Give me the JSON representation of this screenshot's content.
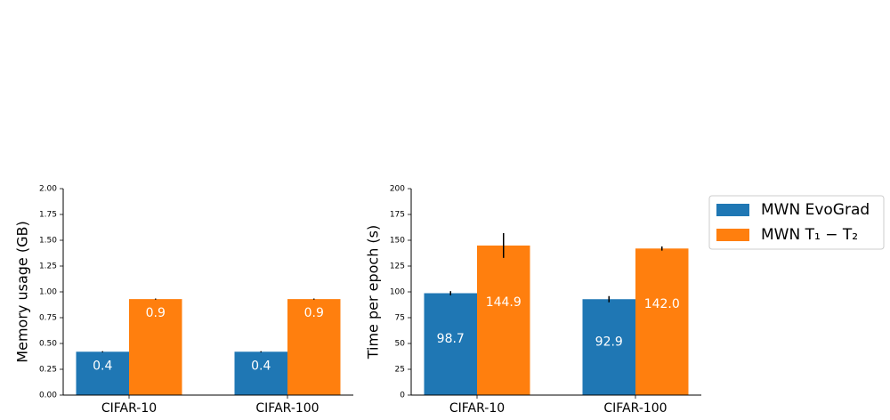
{
  "chart_data": [
    {
      "type": "bar",
      "ylabel": "Memory usage (GB)",
      "categories": [
        "CIFAR-10",
        "CIFAR-100"
      ],
      "series": [
        {
          "color": "#1f77b4",
          "values": [
            0.42,
            0.42
          ],
          "errors": [
            0.005,
            0.005
          ],
          "value_labels": [
            "0.4",
            "0.4"
          ]
        },
        {
          "color": "#ff7f0e",
          "values": [
            0.93,
            0.93
          ],
          "errors": [
            0.005,
            0.005
          ],
          "value_labels": [
            "0.9",
            "0.9"
          ]
        }
      ],
      "ylim": [
        0,
        2
      ],
      "yticks": [
        {
          "value": 0,
          "label": "0.00"
        },
        {
          "value": 0.25,
          "label": "0.25"
        },
        {
          "value": 0.5,
          "label": "0.50"
        },
        {
          "value": 0.75,
          "label": "0.75"
        },
        {
          "value": 1,
          "label": "1.00"
        },
        {
          "value": 1.25,
          "label": "1.25"
        },
        {
          "value": 1.5,
          "label": "1.50"
        },
        {
          "value": 1.75,
          "label": "1.75"
        },
        {
          "value": 2,
          "label": "2.00"
        }
      ]
    },
    {
      "type": "bar",
      "ylabel": "Time per epoch (s)",
      "categories": [
        "CIFAR-10",
        "CIFAR-100"
      ],
      "series": [
        {
          "name": "MWN EvoGrad",
          "color": "#1f77b4",
          "values": [
            98.7,
            92.9
          ],
          "errors": [
            2,
            3
          ]
        },
        {
          "name": "MWN T₁ − T₂",
          "color": "#ff7f0e",
          "values": [
            144.9,
            142.0
          ],
          "errors": [
            12,
            2
          ],
          "value_labels": [
            "144.9",
            "142.0"
          ]
        }
      ],
      "ylim": [
        0,
        200
      ],
      "yticks": [
        0,
        25,
        50,
        75,
        100,
        125,
        150,
        175,
        200
      ]
    }
  ]
}
